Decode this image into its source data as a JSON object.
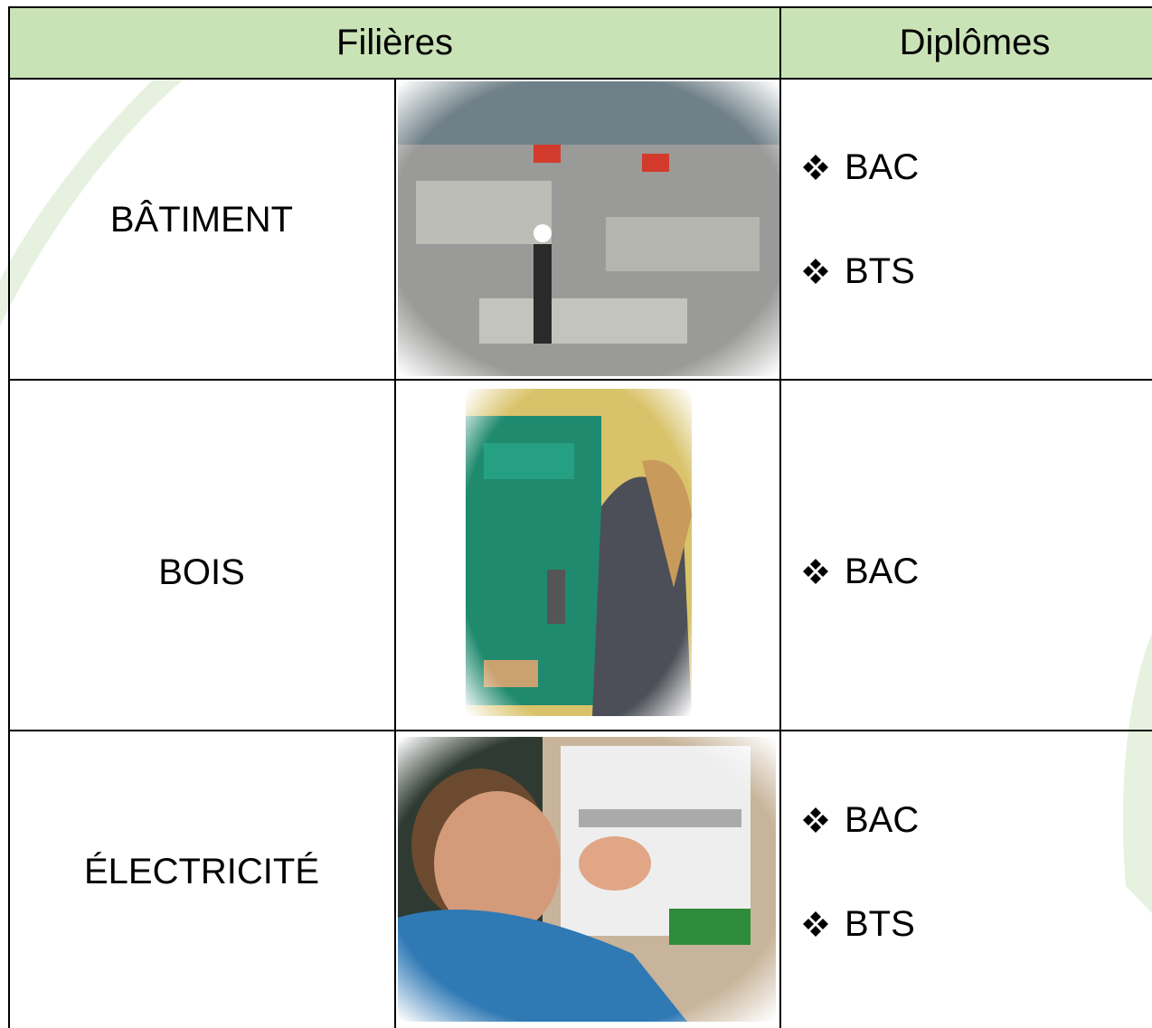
{
  "header": {
    "columns": [
      "Filières",
      "Diplômes"
    ]
  },
  "rows": [
    {
      "filiere": "BÂTIMENT",
      "diplomes": [
        "BAC",
        "BTS"
      ]
    },
    {
      "filiere": "BOIS",
      "diplomes": [
        "BAC"
      ]
    },
    {
      "filiere": "ÉLECTRICITÉ",
      "diplomes": [
        "BAC",
        "BTS"
      ]
    }
  ]
}
